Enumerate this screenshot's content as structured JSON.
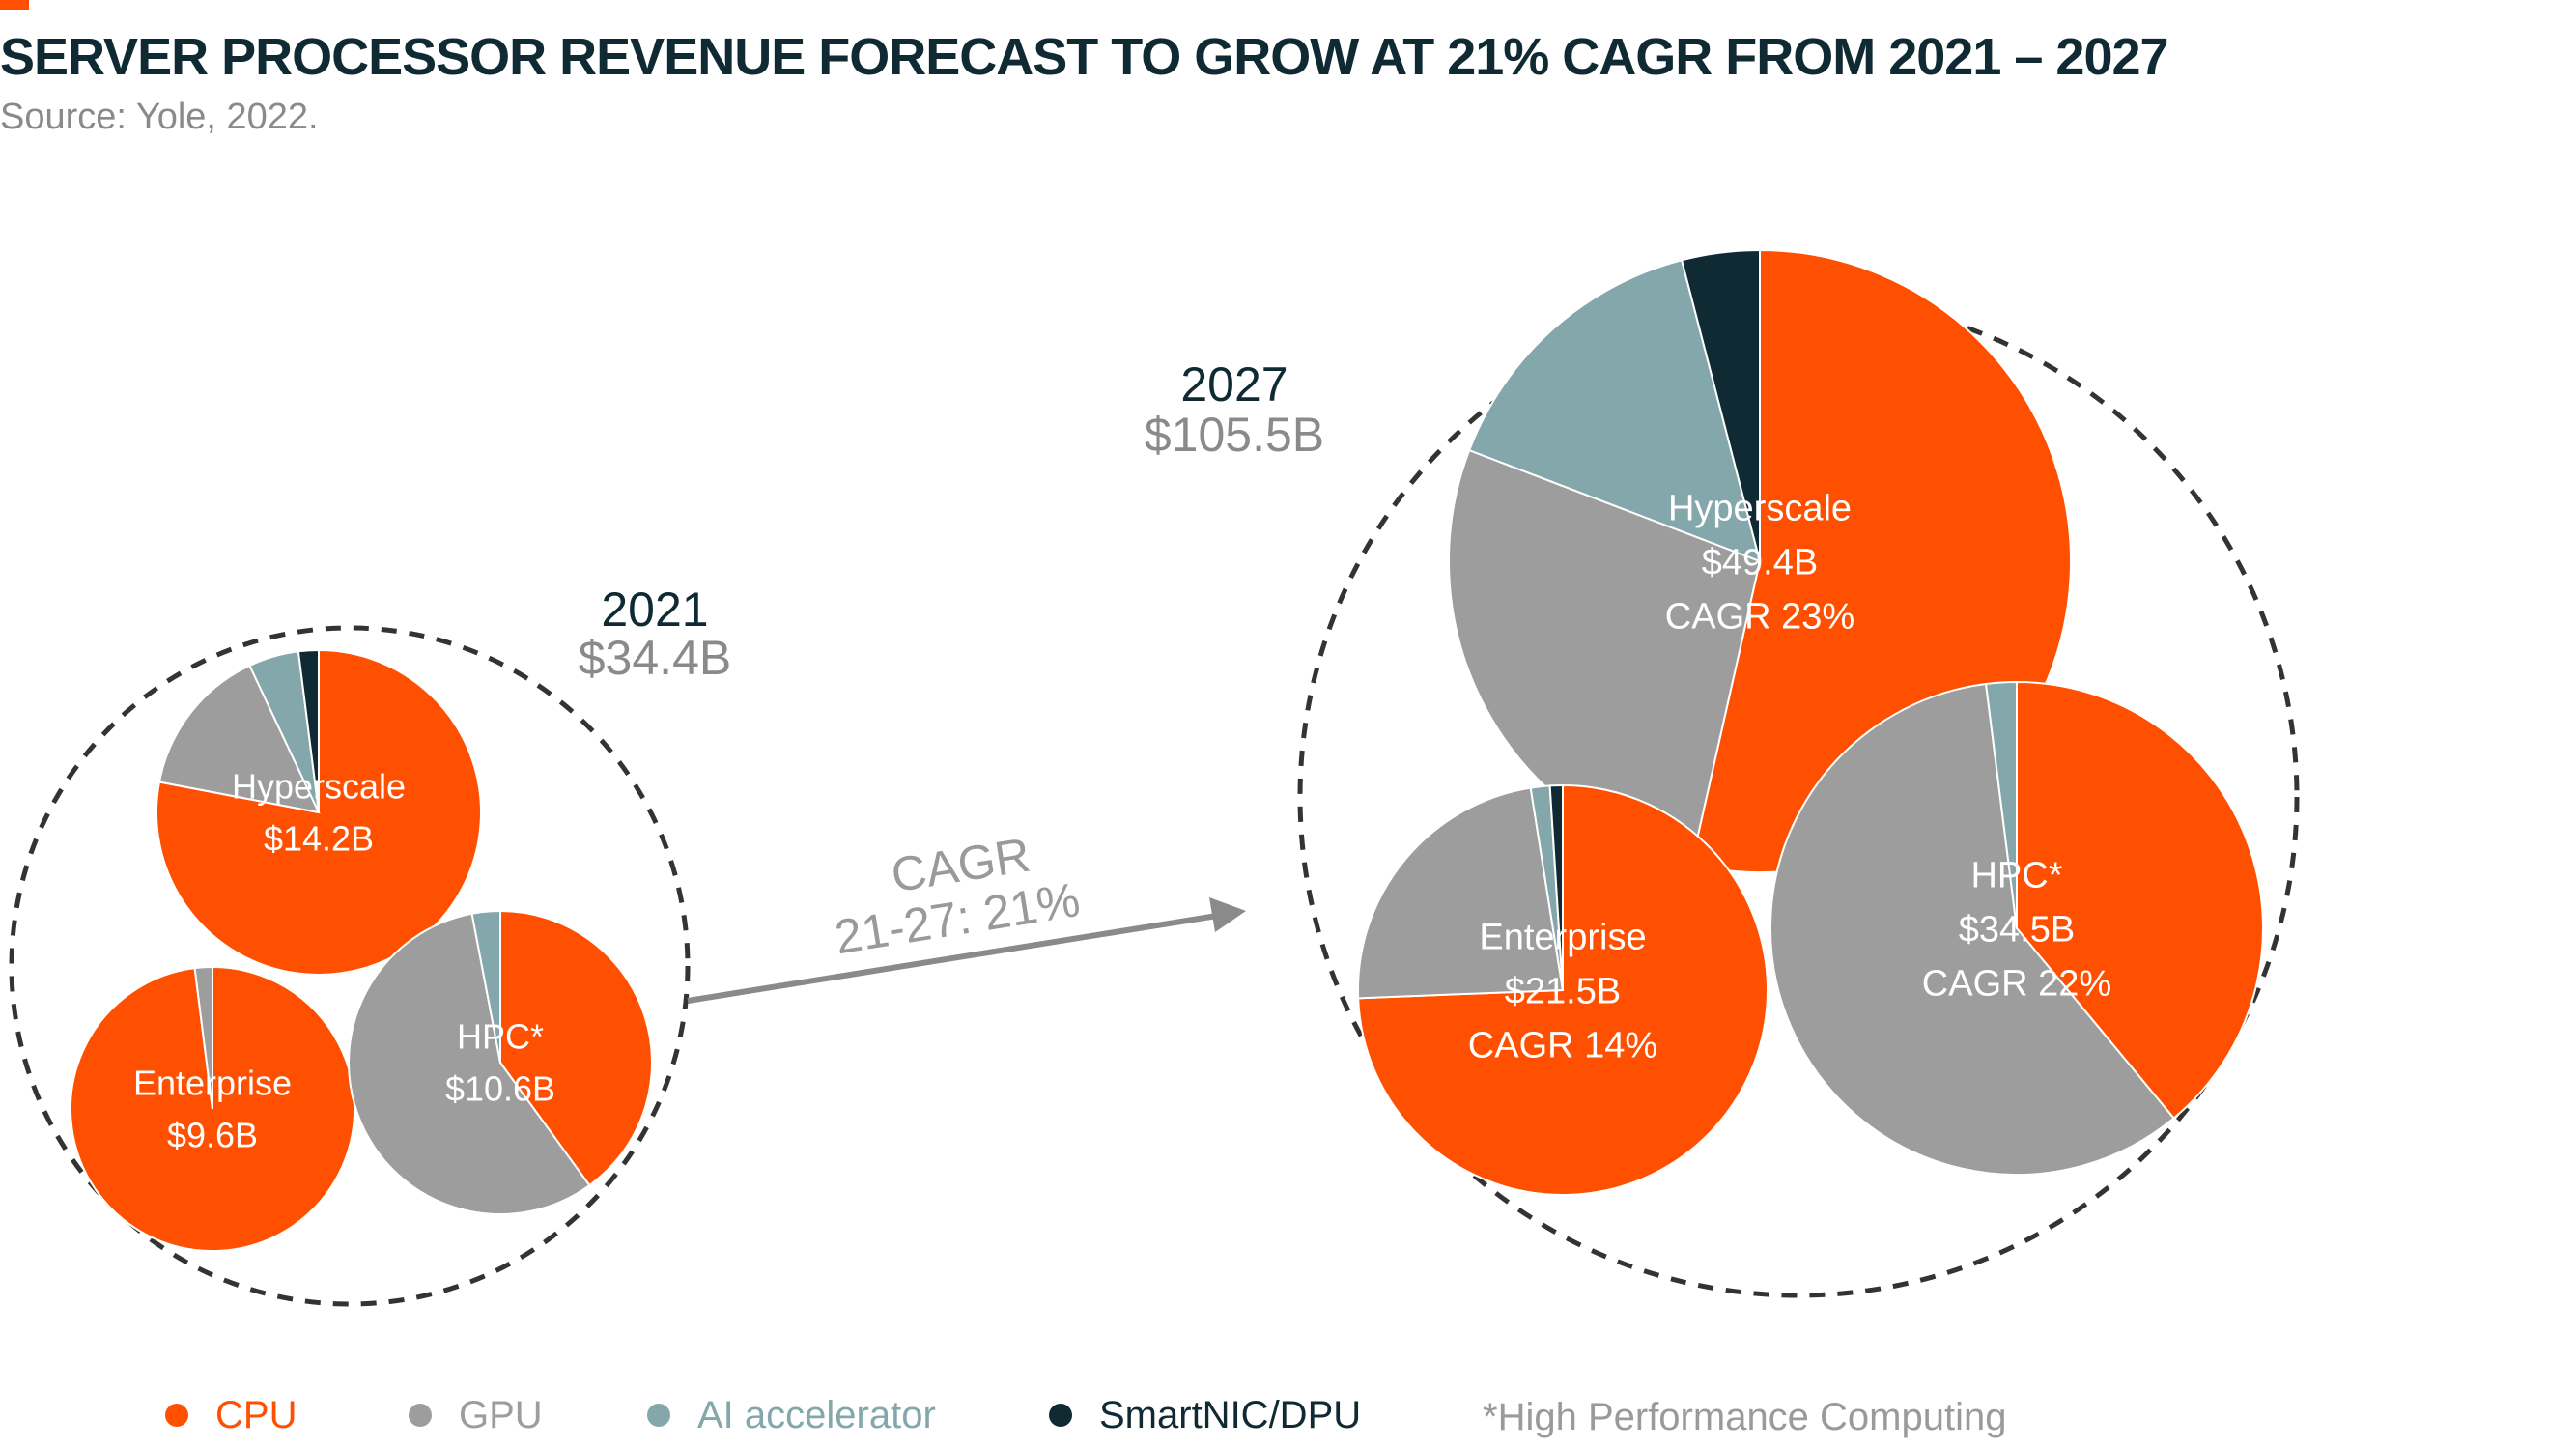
{
  "chart_data": {
    "type": "pie",
    "title": "SERVER PROCESSOR REVENUE FORECAST TO GROW AT 21% CAGR FROM 2021 – 2027",
    "subtitle": "Source: Yole, 2022.",
    "colors": {
      "CPU": "#fe5000",
      "GPU": "#9d9d9d",
      "AI accelerator": "#84a7ab",
      "SmartNIC/DPU": "#0f2a33"
    },
    "series_names": [
      "CPU",
      "GPU",
      "AI accelerator",
      "SmartNIC/DPU"
    ],
    "years": [
      {
        "year": "2021",
        "total": "$34.4B",
        "segments": [
          {
            "name": "Hyperscale",
            "value_label": "$14.2B",
            "cagr_label": "",
            "value_billion": 14.2,
            "slices": [
              0.78,
              0.15,
              0.05,
              0.02
            ]
          },
          {
            "name": "Enterprise",
            "value_label": "$9.6B",
            "cagr_label": "",
            "value_billion": 9.6,
            "slices": [
              0.98,
              0.02,
              0.0,
              0.0
            ]
          },
          {
            "name": "HPC*",
            "value_label": "$10.6B",
            "cagr_label": "",
            "value_billion": 10.6,
            "slices": [
              0.4,
              0.57,
              0.03,
              0.0
            ]
          }
        ]
      },
      {
        "year": "2027",
        "total": "$105.5B",
        "segments": [
          {
            "name": "Hyperscale",
            "value_label": "$49.4B",
            "cagr_label": "CAGR 23%",
            "value_billion": 49.4,
            "slices": [
              0.53,
              0.27,
              0.15,
              0.04
            ]
          },
          {
            "name": "Enterprise",
            "value_label": "$21.5B",
            "cagr_label": "CAGR 14%",
            "value_billion": 21.5,
            "slices": [
              0.74,
              0.23,
              0.015,
              0.01
            ]
          },
          {
            "name": "HPC*",
            "value_label": "$34.5B",
            "cagr_label": "CAGR 22%",
            "value_billion": 34.5,
            "slices": [
              0.39,
              0.59,
              0.02,
              0.0
            ]
          }
        ]
      }
    ],
    "growth_arrow": {
      "line1": "CAGR",
      "line2": "21-27: 21%"
    },
    "legend": [
      "CPU",
      "GPU",
      "AI accelerator",
      "SmartNIC/DPU"
    ],
    "footnote": "*High Performance Computing"
  }
}
